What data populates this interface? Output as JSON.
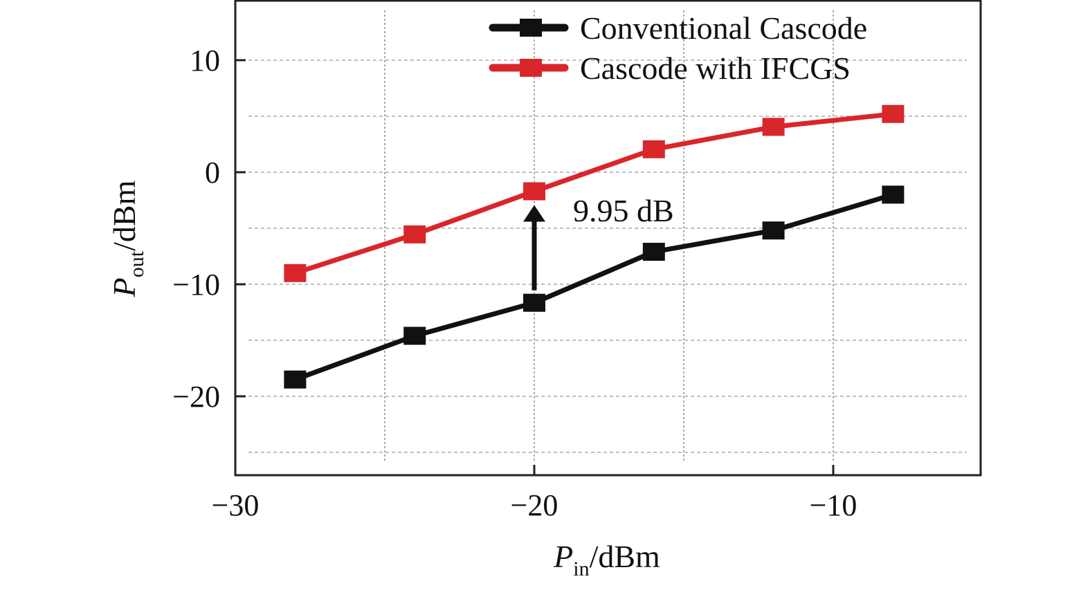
{
  "chart_data": {
    "type": "line",
    "xlabel": {
      "main": "P",
      "sub": "in",
      "unit": "/dBm"
    },
    "ylabel": {
      "main": "P",
      "sub": "out",
      "unit": "/dBm"
    },
    "xlim": [
      -30,
      -5
    ],
    "ylim": [
      -27,
      15.4
    ],
    "xticks": [
      -30,
      -20,
      -10
    ],
    "xtick_labels": [
      "−30",
      "−20",
      "−10"
    ],
    "yticks": [
      10,
      0,
      -10,
      -20
    ],
    "ytick_labels": [
      "10",
      "0",
      "−10",
      "−20"
    ],
    "grid": true,
    "grid_x": [
      -25,
      -20,
      -15,
      -10
    ],
    "grid_y": [
      10,
      5,
      0,
      -5,
      -10,
      -15,
      -20,
      -25
    ],
    "legend_position": "top-right",
    "x": [
      -28,
      -24,
      -20,
      -16,
      -12,
      -8
    ],
    "series": [
      {
        "name": "Conventional Cascode",
        "color": "#111111",
        "values": [
          -18.5,
          -14.6,
          -11.65,
          -7.1,
          -5.2,
          -2.0
        ]
      },
      {
        "name": "Cascode with IFCGS",
        "color": "#d9262b",
        "values": [
          -9.0,
          -5.55,
          -1.7,
          2.05,
          4.05,
          5.2
        ]
      }
    ],
    "annotation": {
      "text": "9.95 dB",
      "x": -20,
      "from": -11.65,
      "to": -1.7
    }
  }
}
